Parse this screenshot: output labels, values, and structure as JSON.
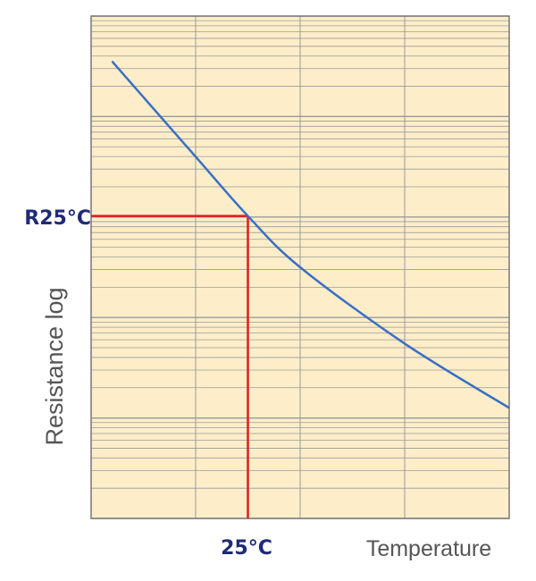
{
  "chart_data": {
    "type": "line",
    "title": "",
    "xlabel": "Temperature",
    "ylabel": "Resistance log",
    "y_scale": "log",
    "grid": true,
    "colors": {
      "background": "#fdeec9",
      "grid": "#9a9a9a",
      "curve": "#3a6fc4",
      "reference": "#e31b1b",
      "label_text": "#1f2a78",
      "axis_title": "#555555"
    },
    "series": [
      {
        "values_note": "",
        "x": [
          0.05,
          0.25,
          0.375,
          0.5,
          0.75,
          1.0
        ],
        "y": [
          4.55,
          3.6,
          3.01,
          2.5,
          1.74,
          1.1
        ]
      }
    ],
    "reference": {
      "x_label": "25°C",
      "y_label": "R25°C",
      "x": 0.375,
      "y": 3.01
    }
  }
}
